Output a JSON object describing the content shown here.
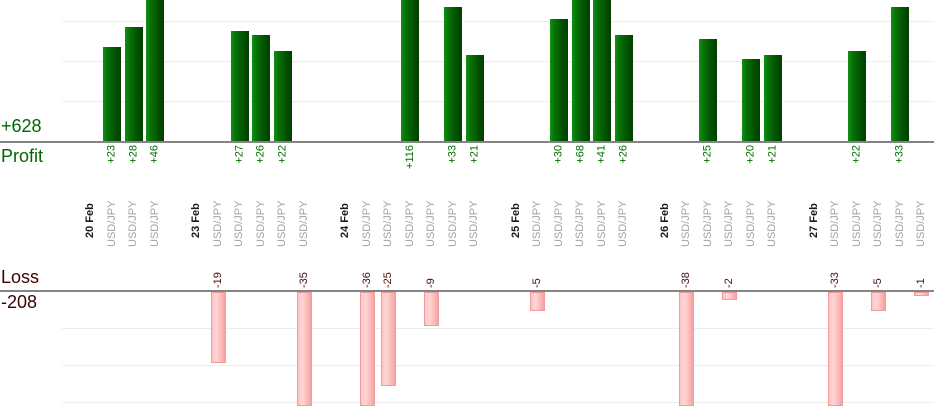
{
  "chart_data": {
    "type": "bar",
    "title": "",
    "axes": {
      "profit_total": "+628",
      "profit_label": "Profit",
      "loss_label": "Loss",
      "loss_total": "-208"
    },
    "legend_position": "none",
    "grid": true,
    "label_rotation_deg": -90,
    "colors": {
      "profit_bar": "#077207",
      "loss_bar": "#ffc3c3",
      "profit_text": "#006600",
      "loss_text": "#3b0303",
      "instrument_text": "#a3a3a3",
      "date_text": "#1a1a1a"
    },
    "groups": [
      {
        "date": "20 Feb",
        "trades": [
          {
            "symbol": "USD/JPY",
            "value": 23
          },
          {
            "symbol": "USD/JPY",
            "value": 28
          },
          {
            "symbol": "USD/JPY",
            "value": 46
          }
        ]
      },
      {
        "date": "23 Feb",
        "trades": [
          {
            "symbol": "USD/JPY",
            "value": -19
          },
          {
            "symbol": "USD/JPY",
            "value": 27
          },
          {
            "symbol": "USD/JPY",
            "value": 26
          },
          {
            "symbol": "USD/JPY",
            "value": 22
          },
          {
            "symbol": "USD/JPY",
            "value": -35
          }
        ]
      },
      {
        "date": "24 Feb",
        "trades": [
          {
            "symbol": "USD/JPY",
            "value": -36
          },
          {
            "symbol": "USD/JPY",
            "value": -25
          },
          {
            "symbol": "USD/JPY",
            "value": 116
          },
          {
            "symbol": "USD/JPY",
            "value": -9
          },
          {
            "symbol": "USD/JPY",
            "value": 33
          },
          {
            "symbol": "USD/JPY",
            "value": 21
          }
        ]
      },
      {
        "date": "25 Feb",
        "trades": [
          {
            "symbol": "USD/JPY",
            "value": -5
          },
          {
            "symbol": "USD/JPY",
            "value": 30
          },
          {
            "symbol": "USD/JPY",
            "value": 68
          },
          {
            "symbol": "USD/JPY",
            "value": 41
          },
          {
            "symbol": "USD/JPY",
            "value": 26
          }
        ]
      },
      {
        "date": "26 Feb",
        "trades": [
          {
            "symbol": "USD/JPY",
            "value": -38
          },
          {
            "symbol": "USD/JPY",
            "value": 25
          },
          {
            "symbol": "USD/JPY",
            "value": -2
          },
          {
            "symbol": "USD/JPY",
            "value": 20
          },
          {
            "symbol": "USD/JPY",
            "value": 21
          }
        ]
      },
      {
        "date": "27 Feb",
        "trades": [
          {
            "symbol": "USD/JPY",
            "value": -33
          },
          {
            "symbol": "USD/JPY",
            "value": 22
          },
          {
            "symbol": "USD/JPY",
            "value": -5
          },
          {
            "symbol": "USD/JPY",
            "value": 33
          },
          {
            "symbol": "USD/JPY",
            "value": -1
          }
        ]
      }
    ]
  }
}
